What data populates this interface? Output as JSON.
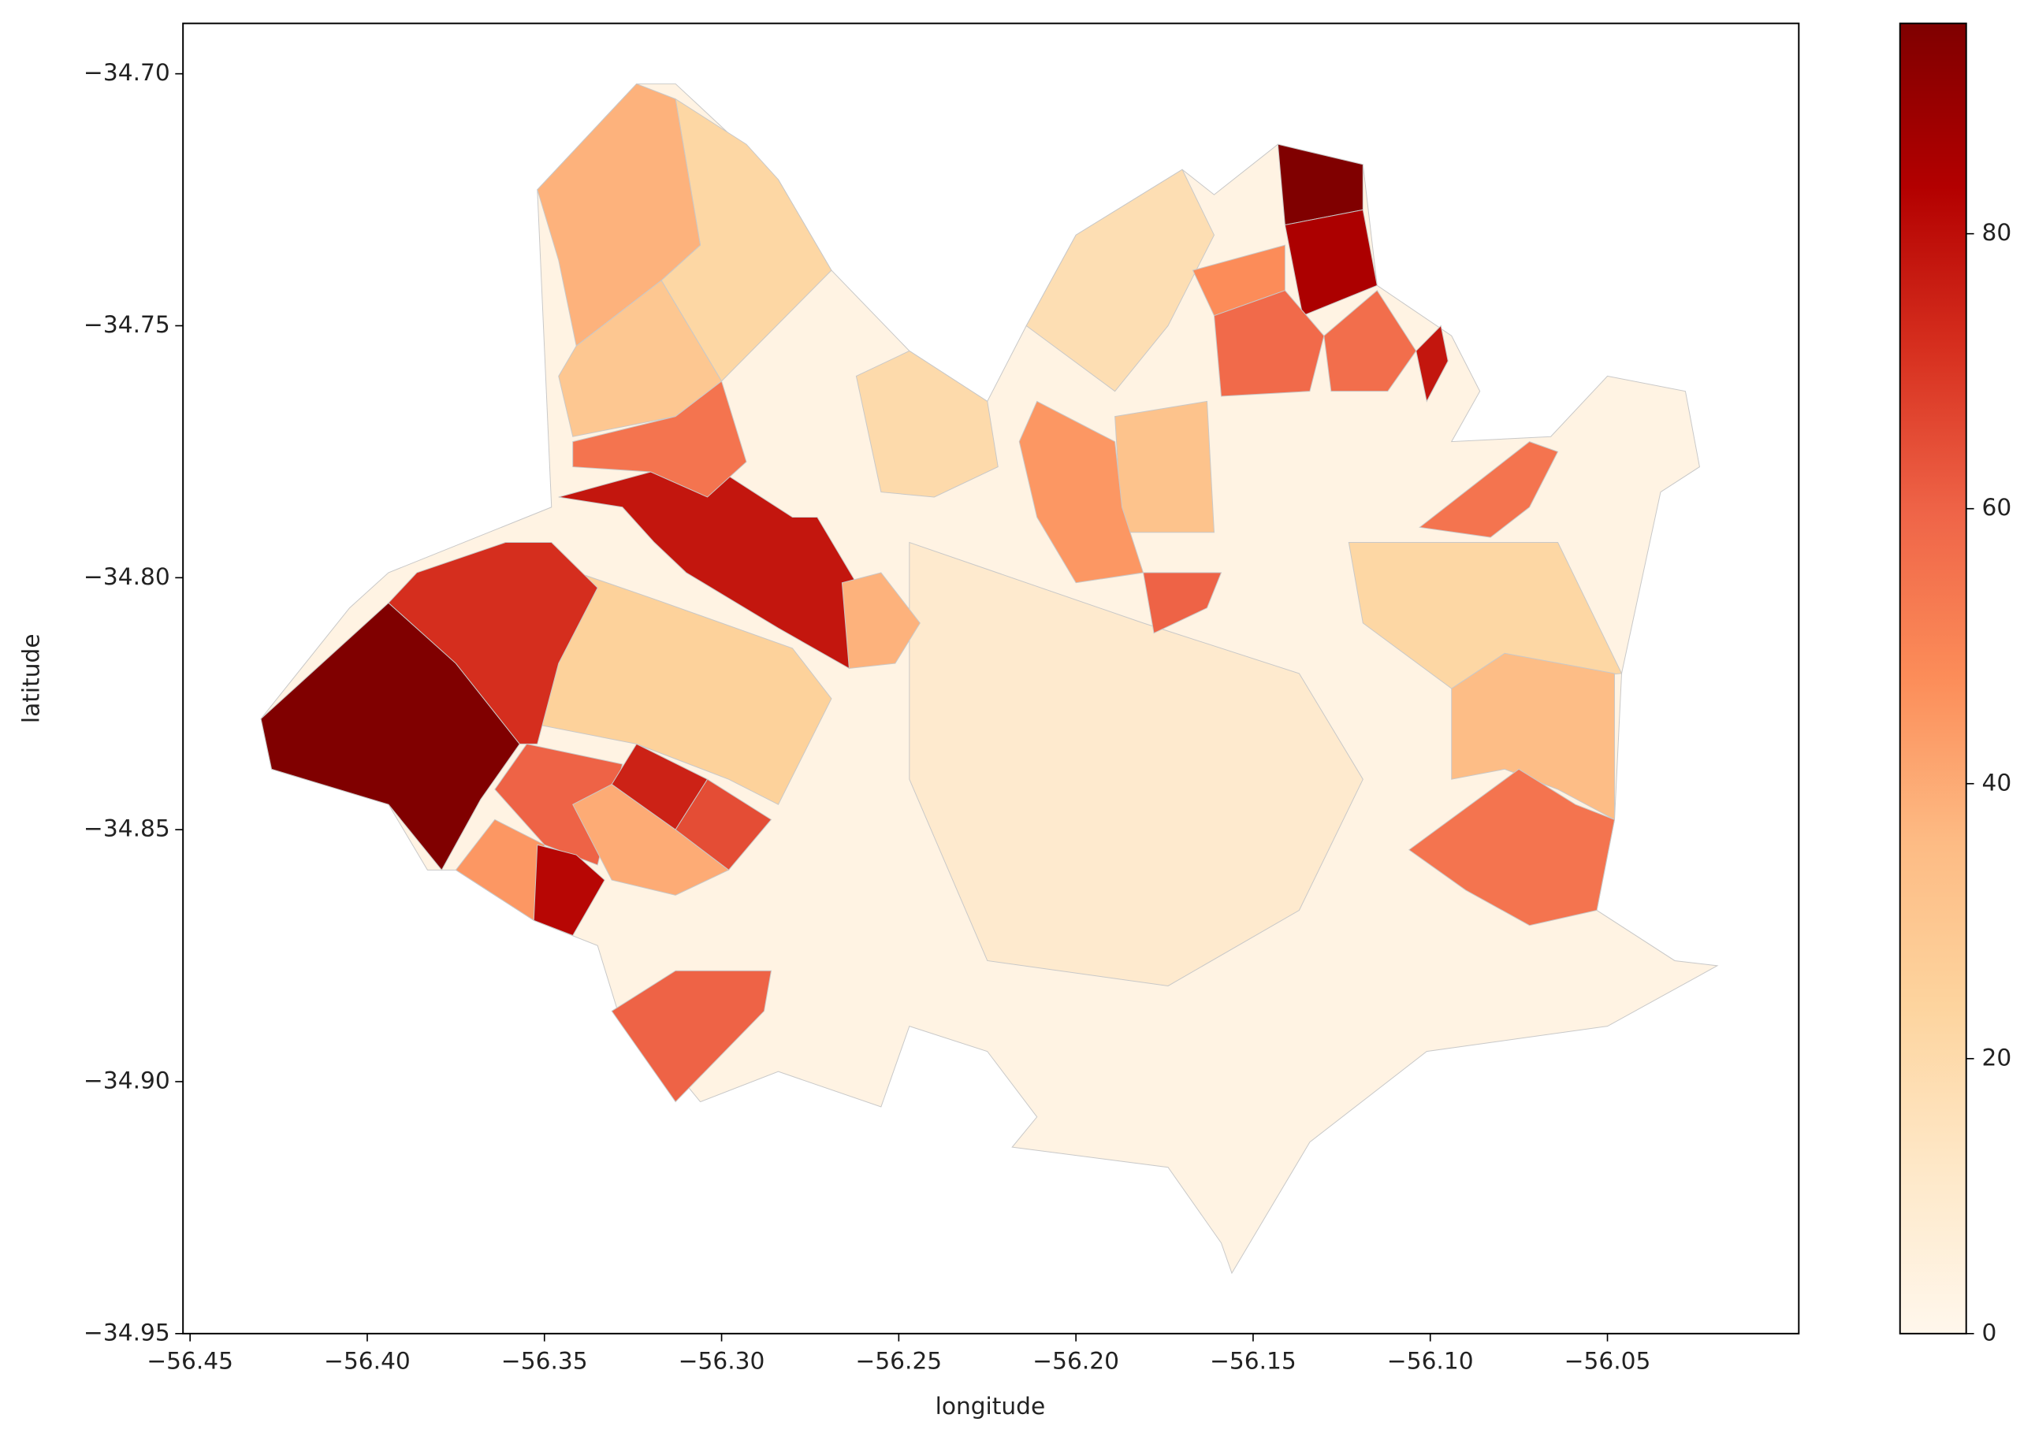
{
  "chart_data": {
    "type": "choropleth",
    "xlabel": "longitude",
    "ylabel": "latitude",
    "xlim": [
      -56.452,
      -55.996
    ],
    "ylim": [
      -34.95,
      -34.69
    ],
    "xticks": [
      {
        "value": -56.45,
        "label": "−56.45"
      },
      {
        "value": -56.4,
        "label": "−56.40"
      },
      {
        "value": -56.35,
        "label": "−56.35"
      },
      {
        "value": -56.3,
        "label": "−56.30"
      },
      {
        "value": -56.25,
        "label": "−56.25"
      },
      {
        "value": -56.2,
        "label": "−56.20"
      },
      {
        "value": -56.15,
        "label": "−56.15"
      },
      {
        "value": -56.1,
        "label": "−56.10"
      },
      {
        "value": -56.05,
        "label": "−56.05"
      }
    ],
    "yticks": [
      {
        "value": -34.7,
        "label": "−34.70"
      },
      {
        "value": -34.75,
        "label": "−34.75"
      },
      {
        "value": -34.8,
        "label": "−34.80"
      },
      {
        "value": -34.85,
        "label": "−34.85"
      },
      {
        "value": -34.9,
        "label": "−34.90"
      },
      {
        "value": -34.95,
        "label": "−34.95"
      }
    ],
    "clim": [
      0,
      95.3
    ],
    "cticks": [
      0,
      20,
      40,
      60,
      80
    ],
    "colormap": [
      "#fff7ec",
      "#fee8c8",
      "#fdd49e",
      "#fdbb84",
      "#fc8d59",
      "#ef6548",
      "#d7301f",
      "#b30000",
      "#7f0000"
    ],
    "edge_color": "#c8c8c8",
    "regions": [
      {
        "value": 3,
        "polygon": [
          [
            -56.43,
            -34.828
          ],
          [
            -56.405,
            -34.806
          ],
          [
            -56.394,
            -34.799
          ],
          [
            -56.348,
            -34.786
          ],
          [
            -56.352,
            -34.723
          ],
          [
            -56.324,
            -34.702
          ],
          [
            -56.313,
            -34.702
          ],
          [
            -56.284,
            -34.721
          ],
          [
            -56.269,
            -34.739
          ],
          [
            -56.247,
            -34.755
          ],
          [
            -56.225,
            -34.765
          ],
          [
            -56.214,
            -34.75
          ],
          [
            -56.2,
            -34.732
          ],
          [
            -56.17,
            -34.719
          ],
          [
            -56.161,
            -34.724
          ],
          [
            -56.143,
            -34.714
          ],
          [
            -56.119,
            -34.718
          ],
          [
            -56.115,
            -34.742
          ],
          [
            -56.094,
            -34.752
          ],
          [
            -56.086,
            -34.763
          ],
          [
            -56.094,
            -34.773
          ],
          [
            -56.066,
            -34.772
          ],
          [
            -56.05,
            -34.76
          ],
          [
            -56.028,
            -34.763
          ],
          [
            -56.024,
            -34.778
          ],
          [
            -56.035,
            -34.783
          ],
          [
            -56.046,
            -34.819
          ],
          [
            -56.048,
            -34.848
          ],
          [
            -56.053,
            -34.866
          ],
          [
            -56.031,
            -34.876
          ],
          [
            -56.019,
            -34.877
          ],
          [
            -56.05,
            -34.889
          ],
          [
            -56.101,
            -34.894
          ],
          [
            -56.134,
            -34.912
          ],
          [
            -56.156,
            -34.938
          ],
          [
            -56.159,
            -34.932
          ],
          [
            -56.174,
            -34.917
          ],
          [
            -56.218,
            -34.913
          ],
          [
            -56.211,
            -34.907
          ],
          [
            -56.225,
            -34.894
          ],
          [
            -56.247,
            -34.889
          ],
          [
            -56.255,
            -34.905
          ],
          [
            -56.284,
            -34.898
          ],
          [
            -56.306,
            -34.904
          ],
          [
            -56.313,
            -34.898
          ],
          [
            -56.328,
            -34.889
          ],
          [
            -56.335,
            -34.873
          ],
          [
            -56.353,
            -34.868
          ],
          [
            -56.375,
            -34.858
          ],
          [
            -56.383,
            -34.858
          ],
          [
            -56.394,
            -34.845
          ],
          [
            -56.427,
            -34.838
          ]
        ]
      },
      {
        "value": 10,
        "polygon": [
          [
            -56.247,
            -34.793
          ],
          [
            -56.181,
            -34.809
          ],
          [
            -56.137,
            -34.819
          ],
          [
            -56.119,
            -34.84
          ],
          [
            -56.137,
            -34.866
          ],
          [
            -56.174,
            -34.881
          ],
          [
            -56.225,
            -34.876
          ],
          [
            -56.247,
            -34.84
          ]
        ]
      },
      {
        "value": 22,
        "polygon": [
          [
            -56.123,
            -34.793
          ],
          [
            -56.064,
            -34.793
          ],
          [
            -56.046,
            -34.819
          ],
          [
            -56.094,
            -34.822
          ],
          [
            -56.119,
            -34.809
          ]
        ]
      },
      {
        "value": 25,
        "polygon": [
          [
            -56.353,
            -34.796
          ],
          [
            -56.32,
            -34.804
          ],
          [
            -56.28,
            -34.814
          ],
          [
            -56.269,
            -34.824
          ],
          [
            -56.284,
            -34.845
          ],
          [
            -56.298,
            -34.84
          ],
          [
            -56.324,
            -34.833
          ],
          [
            -56.353,
            -34.829
          ]
        ]
      },
      {
        "value": 22,
        "polygon": [
          [
            -56.313,
            -34.705
          ],
          [
            -56.293,
            -34.714
          ],
          [
            -56.284,
            -34.721
          ],
          [
            -56.269,
            -34.739
          ],
          [
            -56.3,
            -34.761
          ],
          [
            -56.317,
            -34.741
          ],
          [
            -56.306,
            -34.734
          ]
        ]
      },
      {
        "value": 30,
        "polygon": [
          [
            -56.346,
            -34.76
          ],
          [
            -56.341,
            -34.754
          ],
          [
            -56.317,
            -34.741
          ],
          [
            -56.3,
            -34.761
          ],
          [
            -56.313,
            -34.768
          ],
          [
            -56.342,
            -34.772
          ]
        ]
      },
      {
        "value": 38,
        "polygon": [
          [
            -56.352,
            -34.723
          ],
          [
            -56.324,
            -34.702
          ],
          [
            -56.313,
            -34.705
          ],
          [
            -56.306,
            -34.734
          ],
          [
            -56.317,
            -34.741
          ],
          [
            -56.341,
            -34.754
          ],
          [
            -56.346,
            -34.737
          ]
        ]
      },
      {
        "value": 20,
        "polygon": [
          [
            -56.262,
            -34.76
          ],
          [
            -56.247,
            -34.755
          ],
          [
            -56.225,
            -34.765
          ],
          [
            -56.222,
            -34.778
          ],
          [
            -56.24,
            -34.784
          ],
          [
            -56.255,
            -34.783
          ]
        ]
      },
      {
        "value": 18,
        "polygon": [
          [
            -56.214,
            -34.75
          ],
          [
            -56.2,
            -34.732
          ],
          [
            -56.17,
            -34.719
          ],
          [
            -56.161,
            -34.732
          ],
          [
            -56.174,
            -34.75
          ],
          [
            -56.189,
            -34.763
          ]
        ]
      },
      {
        "value": 32,
        "polygon": [
          [
            -56.189,
            -34.768
          ],
          [
            -56.163,
            -34.765
          ],
          [
            -56.161,
            -34.791
          ],
          [
            -56.187,
            -34.791
          ]
        ]
      },
      {
        "value": 35,
        "polygon": [
          [
            -56.094,
            -34.822
          ],
          [
            -56.079,
            -34.815
          ],
          [
            -56.048,
            -34.819
          ],
          [
            -56.048,
            -34.848
          ],
          [
            -56.064,
            -34.842
          ],
          [
            -56.079,
            -34.838
          ],
          [
            -56.094,
            -34.84
          ]
        ]
      },
      {
        "value": 95,
        "polygon": [
          [
            -56.43,
            -34.828
          ],
          [
            -56.394,
            -34.805
          ],
          [
            -56.375,
            -34.817
          ],
          [
            -56.357,
            -34.833
          ],
          [
            -56.368,
            -34.844
          ],
          [
            -56.379,
            -34.858
          ],
          [
            -56.394,
            -34.845
          ],
          [
            -56.427,
            -34.838
          ]
        ]
      },
      {
        "value": 72,
        "polygon": [
          [
            -56.394,
            -34.805
          ],
          [
            -56.386,
            -34.799
          ],
          [
            -56.361,
            -34.793
          ],
          [
            -56.348,
            -34.793
          ],
          [
            -56.335,
            -34.802
          ],
          [
            -56.346,
            -34.817
          ],
          [
            -56.352,
            -34.833
          ],
          [
            -56.357,
            -34.833
          ],
          [
            -56.375,
            -34.817
          ]
        ]
      },
      {
        "value": 78,
        "polygon": [
          [
            -56.346,
            -34.784
          ],
          [
            -56.32,
            -34.779
          ],
          [
            -56.302,
            -34.778
          ],
          [
            -56.28,
            -34.788
          ],
          [
            -56.273,
            -34.788
          ],
          [
            -56.262,
            -34.801
          ],
          [
            -56.264,
            -34.818
          ],
          [
            -56.284,
            -34.81
          ],
          [
            -56.31,
            -34.799
          ],
          [
            -56.319,
            -34.793
          ],
          [
            -56.328,
            -34.786
          ]
        ]
      },
      {
        "value": 55,
        "polygon": [
          [
            -56.342,
            -34.773
          ],
          [
            -56.313,
            -34.768
          ],
          [
            -56.3,
            -34.761
          ],
          [
            -56.293,
            -34.777
          ],
          [
            -56.304,
            -34.784
          ],
          [
            -56.32,
            -34.779
          ],
          [
            -56.342,
            -34.778
          ]
        ]
      },
      {
        "value": 60,
        "polygon": [
          [
            -56.364,
            -34.842
          ],
          [
            -56.355,
            -34.833
          ],
          [
            -56.328,
            -34.837
          ],
          [
            -56.335,
            -34.857
          ],
          [
            -56.35,
            -34.853
          ]
        ]
      },
      {
        "value": 40,
        "polygon": [
          [
            -56.342,
            -34.845
          ],
          [
            -56.331,
            -34.841
          ],
          [
            -56.313,
            -34.85
          ],
          [
            -56.298,
            -34.858
          ],
          [
            -56.313,
            -34.863
          ],
          [
            -56.331,
            -34.86
          ]
        ]
      },
      {
        "value": 75,
        "polygon": [
          [
            -56.331,
            -34.841
          ],
          [
            -56.324,
            -34.833
          ],
          [
            -56.304,
            -34.84
          ],
          [
            -56.313,
            -34.85
          ]
        ]
      },
      {
        "value": 65,
        "polygon": [
          [
            -56.304,
            -34.84
          ],
          [
            -56.286,
            -34.848
          ],
          [
            -56.298,
            -34.858
          ],
          [
            -56.313,
            -34.85
          ]
        ]
      },
      {
        "value": 45,
        "polygon": [
          [
            -56.375,
            -34.858
          ],
          [
            -56.364,
            -34.848
          ],
          [
            -56.35,
            -34.853
          ],
          [
            -56.353,
            -34.868
          ]
        ]
      },
      {
        "value": 82,
        "polygon": [
          [
            -56.352,
            -34.853
          ],
          [
            -56.341,
            -34.855
          ],
          [
            -56.333,
            -34.86
          ],
          [
            -56.342,
            -34.871
          ],
          [
            -56.353,
            -34.868
          ]
        ]
      },
      {
        "value": 60,
        "polygon": [
          [
            -56.331,
            -34.886
          ],
          [
            -56.313,
            -34.878
          ],
          [
            -56.286,
            -34.878
          ],
          [
            -56.288,
            -34.886
          ],
          [
            -56.313,
            -34.904
          ],
          [
            -56.328,
            -34.889
          ]
        ]
      },
      {
        "value": 38,
        "polygon": [
          [
            -56.266,
            -34.801
          ],
          [
            -56.255,
            -34.799
          ],
          [
            -56.244,
            -34.809
          ],
          [
            -56.251,
            -34.817
          ],
          [
            -56.264,
            -34.818
          ]
        ]
      },
      {
        "value": 95,
        "polygon": [
          [
            -56.143,
            -34.714
          ],
          [
            -56.119,
            -34.718
          ],
          [
            -56.119,
            -34.727
          ],
          [
            -56.141,
            -34.73
          ]
        ]
      },
      {
        "value": 85,
        "polygon": [
          [
            -56.141,
            -34.73
          ],
          [
            -56.119,
            -34.727
          ],
          [
            -56.115,
            -34.742
          ],
          [
            -56.136,
            -34.748
          ]
        ]
      },
      {
        "value": 48,
        "polygon": [
          [
            -56.167,
            -34.739
          ],
          [
            -56.141,
            -34.734
          ],
          [
            -56.141,
            -34.743
          ],
          [
            -56.161,
            -34.748
          ]
        ]
      },
      {
        "value": 58,
        "polygon": [
          [
            -56.161,
            -34.748
          ],
          [
            -56.141,
            -34.743
          ],
          [
            -56.13,
            -34.752
          ],
          [
            -56.134,
            -34.763
          ],
          [
            -56.159,
            -34.764
          ]
        ]
      },
      {
        "value": 57,
        "polygon": [
          [
            -56.13,
            -34.752
          ],
          [
            -56.115,
            -34.743
          ],
          [
            -56.104,
            -34.755
          ],
          [
            -56.112,
            -34.763
          ],
          [
            -56.128,
            -34.763
          ]
        ]
      },
      {
        "value": 78,
        "polygon": [
          [
            -56.104,
            -34.755
          ],
          [
            -56.097,
            -34.75
          ],
          [
            -56.095,
            -34.757
          ],
          [
            -56.101,
            -34.765
          ]
        ]
      },
      {
        "value": 45,
        "polygon": [
          [
            -56.216,
            -34.773
          ],
          [
            -56.211,
            -34.765
          ],
          [
            -56.189,
            -34.773
          ],
          [
            -56.187,
            -34.786
          ],
          [
            -56.181,
            -34.799
          ],
          [
            -56.2,
            -34.801
          ],
          [
            -56.211,
            -34.788
          ]
        ]
      },
      {
        "value": 60,
        "polygon": [
          [
            -56.181,
            -34.799
          ],
          [
            -56.159,
            -34.799
          ],
          [
            -56.163,
            -34.806
          ],
          [
            -56.178,
            -34.811
          ]
        ]
      },
      {
        "value": 55,
        "polygon": [
          [
            -56.103,
            -34.79
          ],
          [
            -56.072,
            -34.773
          ],
          [
            -56.064,
            -34.775
          ],
          [
            -56.072,
            -34.786
          ],
          [
            -56.083,
            -34.792
          ]
        ]
      },
      {
        "value": 55,
        "polygon": [
          [
            -56.106,
            -34.854
          ],
          [
            -56.075,
            -34.838
          ],
          [
            -56.059,
            -34.845
          ],
          [
            -56.048,
            -34.848
          ],
          [
            -56.053,
            -34.866
          ],
          [
            -56.072,
            -34.869
          ],
          [
            -56.09,
            -34.862
          ]
        ]
      }
    ]
  }
}
